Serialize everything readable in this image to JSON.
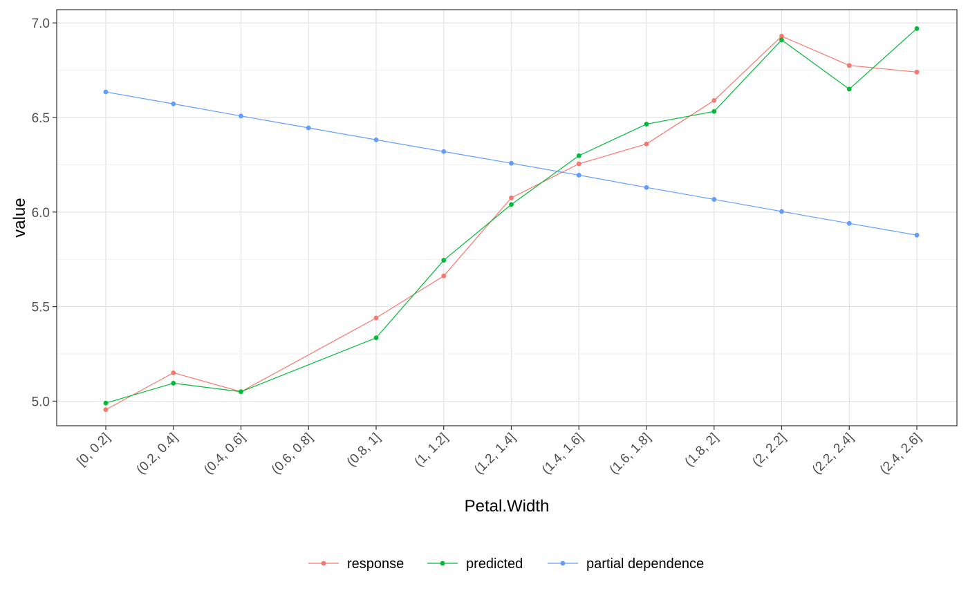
{
  "chart_data": {
    "type": "line",
    "title": "",
    "xlabel": "Petal.Width",
    "ylabel": "value",
    "categories": [
      "[0, 0.2]",
      "(0.2, 0.4]",
      "(0.4, 0.6]",
      "(0.6, 0.8]",
      "(0.8, 1]",
      "(1, 1.2]",
      "(1.2, 1.4]",
      "(1.4, 1.6]",
      "(1.6, 1.8]",
      "(1.8, 2]",
      "(2, 2.2]",
      "(2.2, 2.4]",
      "(2.4, 2.6]"
    ],
    "ylim": [
      4.87,
      7.07
    ],
    "yticks": [
      5.0,
      5.5,
      6.0,
      6.5,
      7.0
    ],
    "ytick_labels": [
      "5.0",
      "5.5",
      "6.0",
      "6.5",
      "7.0"
    ],
    "grid": true,
    "legend_position": "bottom",
    "series": [
      {
        "name": "response",
        "color": "#F8766D",
        "points": [
          [
            0,
            4.955
          ],
          [
            1,
            5.15
          ],
          [
            2,
            5.05
          ],
          [
            4,
            5.44
          ],
          [
            5,
            5.662
          ],
          [
            6,
            6.075
          ],
          [
            7,
            6.255
          ],
          [
            8,
            6.36
          ],
          [
            9,
            6.59
          ],
          [
            10,
            6.93
          ],
          [
            11,
            6.775
          ],
          [
            12,
            6.74
          ]
        ]
      },
      {
        "name": "predicted",
        "color": "#00BA38",
        "points": [
          [
            0,
            4.99
          ],
          [
            1,
            5.095
          ],
          [
            2,
            5.05
          ],
          [
            4,
            5.335
          ],
          [
            5,
            5.745
          ],
          [
            6,
            6.04
          ],
          [
            7,
            6.298
          ],
          [
            8,
            6.465
          ],
          [
            9,
            6.532
          ],
          [
            10,
            6.91
          ],
          [
            11,
            6.65
          ],
          [
            12,
            6.97
          ]
        ]
      },
      {
        "name": "partial dependence",
        "color": "#619CFF",
        "points": [
          [
            0,
            6.635
          ],
          [
            1,
            6.572
          ],
          [
            2,
            6.508
          ],
          [
            3,
            6.445
          ],
          [
            4,
            6.382
          ],
          [
            5,
            6.32
          ],
          [
            6,
            6.258
          ],
          [
            7,
            6.195
          ],
          [
            8,
            6.13
          ],
          [
            9,
            6.067
          ],
          [
            10,
            6.003
          ],
          [
            11,
            5.94
          ],
          [
            12,
            5.878
          ]
        ]
      }
    ]
  }
}
